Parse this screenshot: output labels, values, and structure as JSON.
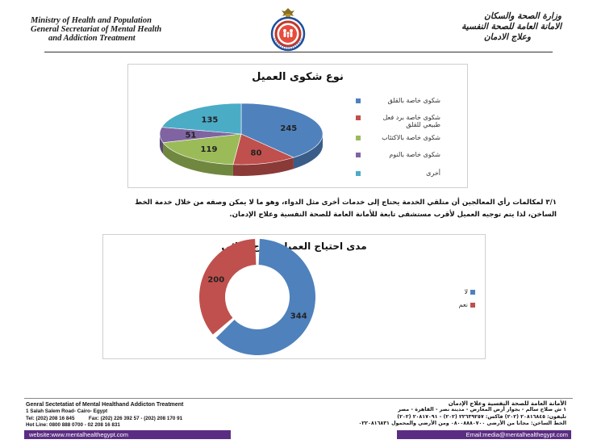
{
  "header": {
    "left_lines": [
      "Ministry of Health and Population",
      "General Secretariat of Mental Health",
      "and Addiction Treatment"
    ],
    "right_lines": [
      "وزارة الصحة والسكان",
      "الامانة العامة للصحة النفسية",
      "وعلاج الادمان"
    ]
  },
  "chart_data": [
    {
      "type": "pie",
      "title": "نوع شكوى العميل",
      "categories": [
        "شكوى خاصة بالقلق",
        "شكوى خاصة برد فعل طبيعي للقلق",
        "شكوى خاصة بالاكتئاب",
        "شكوى خاصة بالنوم",
        "أخرى"
      ],
      "values": [
        245,
        80,
        119,
        51,
        135
      ],
      "colors": [
        "#4f81bd",
        "#c0504d",
        "#9bbb59",
        "#8064a2",
        "#4bacc6"
      ],
      "legend": "right",
      "style": "3d"
    },
    {
      "type": "pie",
      "title": "مدى احتياج العميل لعلاج دوائي",
      "categories": [
        "لا",
        "نعم"
      ],
      "values": [
        344,
        200
      ],
      "colors": [
        "#4f81bd",
        "#c0504d"
      ],
      "legend": "right",
      "style": "doughnut"
    }
  ],
  "paragraph": {
    "lines": [
      "٣/١ لمكالمات رأي المعالجين أن متلقي الخدمة يحتاج إلى خدمات أخرى مثل الدواء، وهو ما لا يمكن وصفه من خلال خدمة الخط",
      "الساخن، لذا يتم توجيه العميل لأقرب مستشفى تابعة للأمانة العامة للصحة النفسية وعلاج الإدمان."
    ]
  },
  "footer": {
    "left_lines": [
      "Genral Sectetatiat of Mental Healthand Addicton Treatment",
      "1 Salah Salem Road- Cairo- Egypt",
      "Tel: (202) 208 16 845          Fax: (202) 226 392 57 - (202) 208 170 91",
      "Hot Line: 0800 888 0700 - 02 208 16 831"
    ],
    "right_lines": [
      "الأمانة العامة للصحة النفسية وعلاج الإدمان",
      "١ ش صلاح سالم - بجوار أرض المعارض - مدينة نصر - القاهرة - مصر",
      "تليفون: ٢٠٨١٦٨٤٥ (٢٠٢) فاكس: ٢٢٦٣٩٢٥٧ (٢٠٢) - ٢٠٨١٧٠٩١ (٢٠٢)",
      "الخط الساخن: مجانا من الأرضي ٠٨٠٠٨٨٨٠٧٠٠ ومن الأرضي والمحمول ٠٢٢٠٨١٦٨٣١"
    ],
    "website": "website:www.mentalhealthegypt.com",
    "email": "Email:media@mentalhealthegypt.com",
    "bar_color": "#5b2d82"
  }
}
